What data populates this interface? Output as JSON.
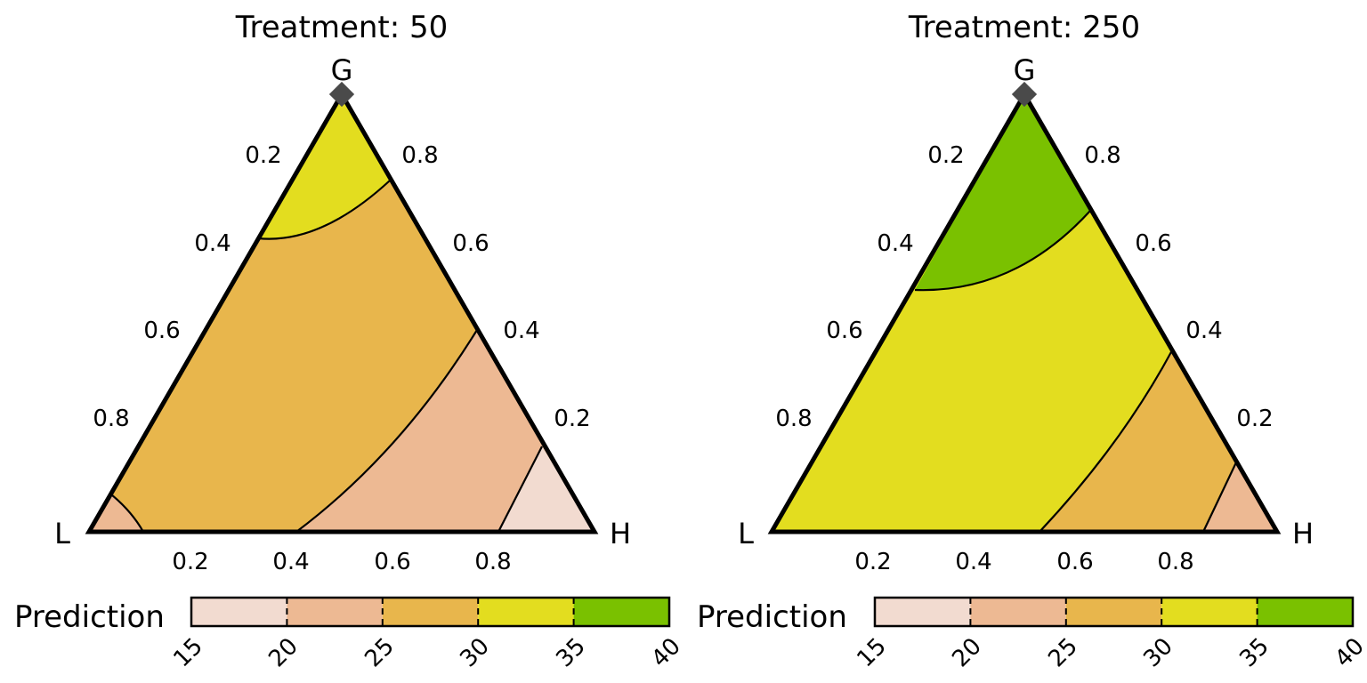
{
  "chart_data": [
    {
      "type": "ternary-contour",
      "title": "Treatment: 50",
      "vertices": {
        "top": "G",
        "left": "L",
        "right": "H"
      },
      "axis_ticks": [
        "0.2",
        "0.4",
        "0.6",
        "0.8"
      ],
      "marked_point": {
        "G": 1,
        "L": 0,
        "H": 0,
        "shape": "diamond",
        "color": "#4a4a4a"
      },
      "regions": [
        {
          "range": "30-35",
          "color": "#e3dd1f"
        },
        {
          "range": "25-30",
          "color": "#e8b64c"
        },
        {
          "range": "20-25",
          "color": "#edb993"
        },
        {
          "range": "15-20",
          "color": "#f2dbd0"
        }
      ],
      "legend": {
        "title": "Prediction",
        "breaks": [
          "15",
          "20",
          "25",
          "30",
          "35",
          "40"
        ],
        "colors": [
          "#f2dbd0",
          "#edb993",
          "#e8b64c",
          "#e3dd1f",
          "#7ac100"
        ]
      }
    },
    {
      "type": "ternary-contour",
      "title": "Treatment: 250",
      "vertices": {
        "top": "G",
        "left": "L",
        "right": "H"
      },
      "axis_ticks": [
        "0.2",
        "0.4",
        "0.6",
        "0.8"
      ],
      "marked_point": {
        "G": 1,
        "L": 0,
        "H": 0,
        "shape": "diamond",
        "color": "#4a4a4a"
      },
      "regions": [
        {
          "range": "35-40",
          "color": "#7ac100"
        },
        {
          "range": "30-35",
          "color": "#e3dd1f"
        },
        {
          "range": "25-30",
          "color": "#e8b64c"
        },
        {
          "range": "20-25",
          "color": "#edb993"
        }
      ],
      "legend": {
        "title": "Prediction",
        "breaks": [
          "15",
          "20",
          "25",
          "30",
          "35",
          "40"
        ],
        "colors": [
          "#f2dbd0",
          "#edb993",
          "#e8b64c",
          "#e3dd1f",
          "#7ac100"
        ]
      }
    }
  ]
}
